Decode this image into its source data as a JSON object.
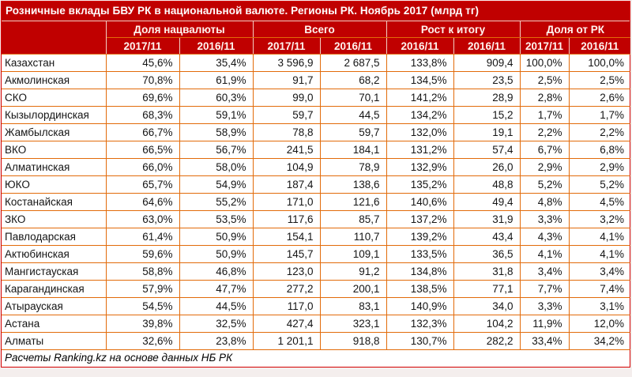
{
  "title": "Розничные вклады БВУ РК в национальной валюте. Регионы РК. Ноябрь 2017 (млрд тг)",
  "footer": "Расчеты Ranking.kz на основе данных НБ РК",
  "colors": {
    "header_bg": "#C00000",
    "header_text": "#FFFFFF",
    "border_orange": "#E26B0A",
    "border_red": "#FF0000",
    "body_bg": "#FFFFFF",
    "body_text": "#151515"
  },
  "chart_data": {
    "type": "table",
    "title": "Розничные вклады БВУ РК в национальной валюте. Регионы РК. Ноябрь 2017 (млрд тг)",
    "column_groups": [
      {
        "label": "Доля нацвалюты",
        "cols": [
          "2017/11",
          "2016/11"
        ]
      },
      {
        "label": "Всего",
        "cols": [
          "2017/11",
          "2016/11"
        ]
      },
      {
        "label": "Рост к итогу",
        "cols": [
          "2016/11",
          "2016/11"
        ]
      },
      {
        "label": "Доля от РК",
        "cols": [
          "2017/11",
          "2016/11"
        ]
      }
    ],
    "rows": [
      {
        "region": "Казахстан",
        "values": [
          "45,6%",
          "35,4%",
          "3 596,9",
          "2 687,5",
          "133,8%",
          "909,4",
          "100,0%",
          "100,0%"
        ]
      },
      {
        "region": "Акмолинская",
        "values": [
          "70,8%",
          "61,9%",
          "91,7",
          "68,2",
          "134,5%",
          "23,5",
          "2,5%",
          "2,5%"
        ]
      },
      {
        "region": "СКО",
        "values": [
          "69,6%",
          "60,3%",
          "99,0",
          "70,1",
          "141,2%",
          "28,9",
          "2,8%",
          "2,6%"
        ]
      },
      {
        "region": "Кызылординская",
        "values": [
          "68,3%",
          "59,1%",
          "59,7",
          "44,5",
          "134,2%",
          "15,2",
          "1,7%",
          "1,7%"
        ]
      },
      {
        "region": "Жамбылская",
        "values": [
          "66,7%",
          "58,9%",
          "78,8",
          "59,7",
          "132,0%",
          "19,1",
          "2,2%",
          "2,2%"
        ]
      },
      {
        "region": "ВКО",
        "values": [
          "66,5%",
          "56,7%",
          "241,5",
          "184,1",
          "131,2%",
          "57,4",
          "6,7%",
          "6,8%"
        ]
      },
      {
        "region": "Алматинская",
        "values": [
          "66,0%",
          "58,0%",
          "104,9",
          "78,9",
          "132,9%",
          "26,0",
          "2,9%",
          "2,9%"
        ]
      },
      {
        "region": "ЮКО",
        "values": [
          "65,7%",
          "54,9%",
          "187,4",
          "138,6",
          "135,2%",
          "48,8",
          "5,2%",
          "5,2%"
        ]
      },
      {
        "region": "Костанайская",
        "values": [
          "64,6%",
          "55,2%",
          "171,0",
          "121,6",
          "140,6%",
          "49,4",
          "4,8%",
          "4,5%"
        ]
      },
      {
        "region": "ЗКО",
        "values": [
          "63,0%",
          "53,5%",
          "117,6",
          "85,7",
          "137,2%",
          "31,9",
          "3,3%",
          "3,2%"
        ]
      },
      {
        "region": "Павлодарская",
        "values": [
          "61,4%",
          "50,9%",
          "154,1",
          "110,7",
          "139,2%",
          "43,4",
          "4,3%",
          "4,1%"
        ]
      },
      {
        "region": "Актюбинская",
        "values": [
          "59,6%",
          "50,9%",
          "145,7",
          "109,1",
          "133,5%",
          "36,5",
          "4,1%",
          "4,1%"
        ]
      },
      {
        "region": "Мангистауская",
        "values": [
          "58,8%",
          "46,8%",
          "123,0",
          "91,2",
          "134,8%",
          "31,8",
          "3,4%",
          "3,4%"
        ]
      },
      {
        "region": "Карагандинская",
        "values": [
          "57,9%",
          "47,7%",
          "277,2",
          "200,1",
          "138,5%",
          "77,1",
          "7,7%",
          "7,4%"
        ]
      },
      {
        "region": "Атырауская",
        "values": [
          "54,5%",
          "44,5%",
          "117,0",
          "83,1",
          "140,9%",
          "34,0",
          "3,3%",
          "3,1%"
        ]
      },
      {
        "region": "Астана",
        "values": [
          "39,8%",
          "32,5%",
          "427,4",
          "323,1",
          "132,3%",
          "104,2",
          "11,9%",
          "12,0%"
        ]
      },
      {
        "region": "Алматы",
        "values": [
          "32,6%",
          "23,8%",
          "1 201,1",
          "918,8",
          "130,7%",
          "282,2",
          "33,4%",
          "34,2%"
        ]
      }
    ]
  }
}
